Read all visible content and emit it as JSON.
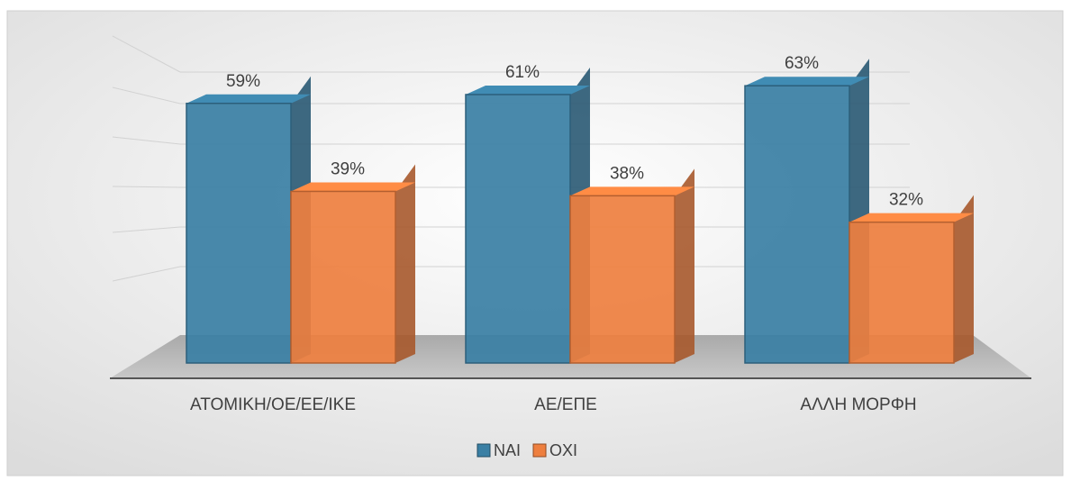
{
  "chart_data": {
    "type": "bar3d",
    "categories": [
      "ΑΤΟΜΙΚΗ/ΟΕ/ΕΕ/ΙΚΕ",
      "ΑΕ/ΕΠΕ",
      "ΑΛΛΗ ΜΟΡΦΗ"
    ],
    "series": [
      {
        "name": "ΝΑΙ",
        "color": "#3a7fa4",
        "values": [
          59,
          61,
          63
        ],
        "value_labels": [
          "59%",
          "61%",
          "63%"
        ]
      },
      {
        "name": "ΟΧΙ",
        "color": "#ee7f3f",
        "values": [
          39,
          38,
          32
        ],
        "value_labels": [
          "39%",
          "38%",
          "32%"
        ]
      }
    ],
    "ylim": [
      0,
      70
    ],
    "legend": "bottom"
  }
}
